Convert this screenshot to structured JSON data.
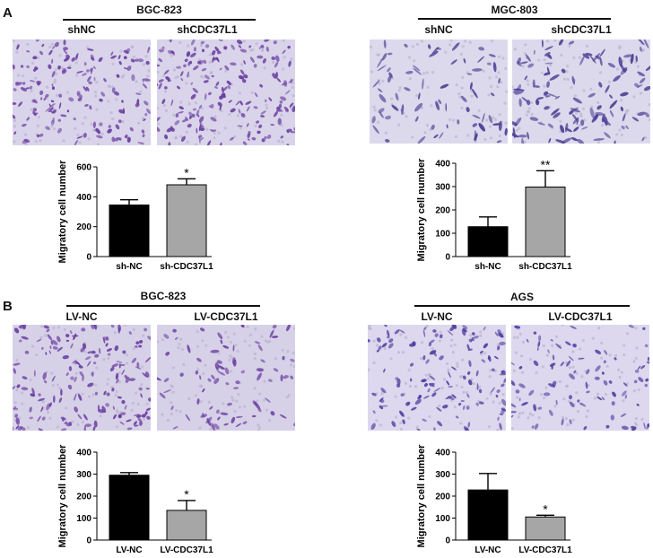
{
  "panels": [
    {
      "letter": "A",
      "groups": [
        {
          "cell_line": "BGC-823",
          "conditions": [
            "shNC",
            "shCDC37L1"
          ],
          "image_colors": {
            "bg": "#d9d4ea",
            "cells": "#6a3ea0"
          }
        },
        {
          "cell_line": "MGC-803",
          "conditions": [
            "shNC",
            "shCDC37L1"
          ],
          "image_colors": {
            "bg": "#ddd9ec",
            "cells": "#4c3f94"
          }
        }
      ]
    },
    {
      "letter": "B",
      "groups": [
        {
          "cell_line": "BGC-823",
          "conditions": [
            "LV-NC",
            "LV-CDC37L1"
          ],
          "image_colors": {
            "bg": "#d7d1e8",
            "cells": "#6a3ea0"
          }
        },
        {
          "cell_line": "AGS",
          "conditions": [
            "LV-NC",
            "LV-CDC37L1"
          ],
          "image_colors": {
            "bg": "#ddd8ee",
            "cells": "#5040a0"
          }
        }
      ]
    }
  ],
  "chart_data": [
    {
      "type": "bar",
      "panel": "A",
      "cell_line": "BGC-823",
      "categories": [
        "sh-NC",
        "sh-CDC37L1"
      ],
      "values": [
        345,
        480
      ],
      "errors": [
        35,
        40
      ],
      "significance": [
        "",
        "*"
      ],
      "ylabel": "Migratory cell number",
      "ylim": [
        0,
        600
      ],
      "yticks": [
        0,
        200,
        400,
        600
      ],
      "colors": [
        "#000000",
        "#a6a6a6"
      ]
    },
    {
      "type": "bar",
      "panel": "A",
      "cell_line": "MGC-803",
      "categories": [
        "sh-NC",
        "sh-CDC37L1"
      ],
      "values": [
        128,
        298
      ],
      "errors": [
        42,
        70
      ],
      "significance": [
        "",
        "**"
      ],
      "ylabel": "Migratory cell number",
      "ylim": [
        0,
        400
      ],
      "yticks": [
        0,
        100,
        200,
        300,
        400
      ],
      "colors": [
        "#000000",
        "#a6a6a6"
      ]
    },
    {
      "type": "bar",
      "panel": "B",
      "cell_line": "BGC-823",
      "categories": [
        "LV-NC",
        "LV-CDC37L1"
      ],
      "values": [
        295,
        135
      ],
      "errors": [
        12,
        45
      ],
      "significance": [
        "",
        "*"
      ],
      "ylabel": "Migratory cell number",
      "ylim": [
        0,
        400
      ],
      "yticks": [
        0,
        100,
        200,
        300,
        400
      ],
      "colors": [
        "#000000",
        "#a6a6a6"
      ]
    },
    {
      "type": "bar",
      "panel": "B",
      "cell_line": "AGS",
      "categories": [
        "LV-NC",
        "LV-CDC37L1"
      ],
      "values": [
        228,
        105
      ],
      "errors": [
        75,
        8
      ],
      "significance": [
        "",
        "*"
      ],
      "ylabel": "Migratory cell number",
      "ylim": [
        0,
        400
      ],
      "yticks": [
        0,
        100,
        200,
        300,
        400
      ],
      "colors": [
        "#000000",
        "#a6a6a6"
      ]
    }
  ]
}
